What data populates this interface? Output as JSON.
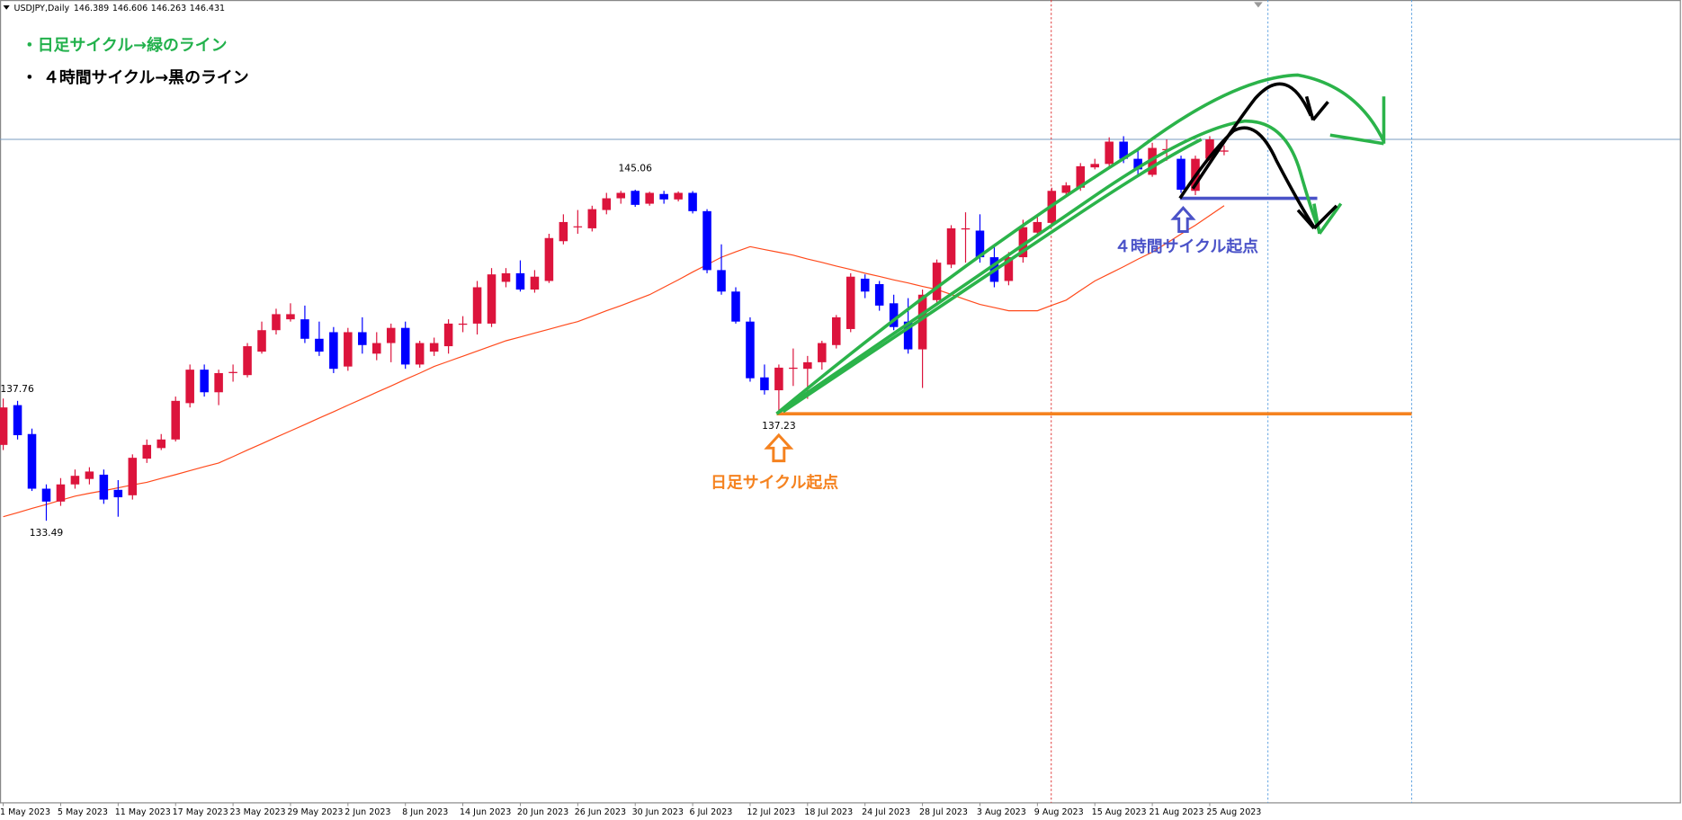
{
  "chart_data": {
    "type": "candlestick",
    "title": "USDJPY,Daily",
    "categories": [
      "1 May 2023",
      null,
      null,
      null,
      "5 May 2023",
      null,
      null,
      null,
      "11 May 2023",
      null,
      null,
      null,
      "17 May 2023",
      null,
      null,
      null,
      "23 May 2023",
      null,
      null,
      null,
      "29 May 2023",
      null,
      null,
      null,
      "2 Jun 2023",
      null,
      null,
      null,
      "8 Jun 2023",
      null,
      null,
      null,
      "14 Jun 2023",
      null,
      null,
      null,
      "20 Jun 2023",
      null,
      null,
      null,
      "26 Jun 2023",
      null,
      null,
      null,
      "30 Jun 2023",
      null,
      null,
      null,
      "6 Jul 2023",
      null,
      null,
      null,
      "12 Jul 2023",
      null,
      null,
      null,
      "18 Jul 2023",
      null,
      null,
      null,
      "24 Jul 2023",
      null,
      null,
      null,
      "28 Jul 2023",
      null,
      null,
      null,
      "3 Aug 2023",
      null,
      null,
      null,
      "9 Aug 2023",
      null,
      null,
      null,
      "15 Aug 2023",
      null,
      null,
      null,
      "21 Aug 2023",
      null,
      null,
      null,
      "25 Aug 2023",
      null
    ],
    "open": [
      136.14,
      137.53,
      136.52,
      134.61,
      134.16,
      134.76,
      134.95,
      135.1,
      134.57,
      134.38,
      135.66,
      136.03,
      136.33,
      137.6,
      138.77,
      137.98,
      138.65,
      138.58,
      139.4,
      140.15,
      140.53,
      140.53,
      139.85,
      140.08,
      138.88,
      140.08,
      139.33,
      139.7,
      140.23,
      138.95,
      139.4,
      139.59,
      140.34,
      140.38,
      140.38,
      141.84,
      142.14,
      141.57,
      141.87,
      143.26,
      143.75,
      143.71,
      144.35,
      144.76,
      145.02,
      144.57,
      144.91,
      144.72,
      144.95,
      144.31,
      142.25,
      141.5,
      140.45,
      138.5,
      138.05,
      138.8,
      138.8,
      139.03,
      139.63,
      140.19,
      141.95,
      141.76,
      141.09,
      140.45,
      139.48,
      141.2,
      142.44,
      143.67,
      143.63,
      142.7,
      141.87,
      142.7,
      143.56,
      143.9,
      144.95,
      145.13,
      145.84,
      145.96,
      146.74,
      146.14,
      145.58,
      146.44,
      146.14,
      145.02,
      146.14,
      146.389
    ],
    "high": [
      137.76,
      137.68,
      136.71,
      134.76,
      134.98,
      135.28,
      135.36,
      135.28,
      134.91,
      135.81,
      136.33,
      136.52,
      137.83,
      138.95,
      138.95,
      138.77,
      138.95,
      139.7,
      140.45,
      140.9,
      141.09,
      141.01,
      140.45,
      140.26,
      140.23,
      140.6,
      140.08,
      140.38,
      140.45,
      139.78,
      139.89,
      140.53,
      140.64,
      141.87,
      142.32,
      142.32,
      142.59,
      142.25,
      143.52,
      144.2,
      144.35,
      144.5,
      144.95,
      145.02,
      145.06,
      144.99,
      145.02,
      145.0,
      145.01,
      144.38,
      143.15,
      141.65,
      140.6,
      138.95,
      138.95,
      139.51,
      139.25,
      139.78,
      140.68,
      142.14,
      142.1,
      141.87,
      141.39,
      141.27,
      141.57,
      142.62,
      143.82,
      144.27,
      144.2,
      143.15,
      142.88,
      144.01,
      144.12,
      145.13,
      145.32,
      145.99,
      146.14,
      146.89,
      146.93,
      146.44,
      146.7,
      146.82,
      146.25,
      146.25,
      146.93,
      146.606
    ],
    "low": [
      135.96,
      136.33,
      134.53,
      133.49,
      134.01,
      134.61,
      134.76,
      134.08,
      133.63,
      134.23,
      135.51,
      135.96,
      136.26,
      137.45,
      137.83,
      137.53,
      138.35,
      138.5,
      139.33,
      140.0,
      140.45,
      139.7,
      139.25,
      138.65,
      138.73,
      139.33,
      139.1,
      139.03,
      138.8,
      138.84,
      139.25,
      139.33,
      140.08,
      140.0,
      140.26,
      141.65,
      141.5,
      141.46,
      141.8,
      143.15,
      143.52,
      143.6,
      144.2,
      144.57,
      144.46,
      144.5,
      144.57,
      144.65,
      144.23,
      142.14,
      141.39,
      140.38,
      138.35,
      137.9,
      137.23,
      138.2,
      137.75,
      138.77,
      139.51,
      140.08,
      141.27,
      140.83,
      140.15,
      139.33,
      138.13,
      141.01,
      142.32,
      142.51,
      142.51,
      141.65,
      141.72,
      142.51,
      143.45,
      143.75,
      144.87,
      145.02,
      145.77,
      145.81,
      145.99,
      145.51,
      145.51,
      146.07,
      144.95,
      144.87,
      146.07,
      146.263
    ],
    "close": [
      137.45,
      136.48,
      134.61,
      134.16,
      134.76,
      135.06,
      135.21,
      134.23,
      134.31,
      135.69,
      136.14,
      136.33,
      137.68,
      138.77,
      137.98,
      138.65,
      138.69,
      139.59,
      140.15,
      140.71,
      140.71,
      139.85,
      139.4,
      138.8,
      140.08,
      139.63,
      139.7,
      140.23,
      138.95,
      139.7,
      139.7,
      140.38,
      140.38,
      141.65,
      142.1,
      142.14,
      141.57,
      142.02,
      143.37,
      143.93,
      143.78,
      144.38,
      144.76,
      144.95,
      144.53,
      144.95,
      144.72,
      144.95,
      144.31,
      142.25,
      141.5,
      140.45,
      138.47,
      138.05,
      138.84,
      138.84,
      139.03,
      139.7,
      140.6,
      142.02,
      141.5,
      141.01,
      140.26,
      139.48,
      141.39,
      142.51,
      143.71,
      143.71,
      142.7,
      141.84,
      142.7,
      143.75,
      143.93,
      145.02,
      145.21,
      145.88,
      145.96,
      146.74,
      146.14,
      145.77,
      146.52,
      146.48,
      145.06,
      146.14,
      146.82,
      146.431
    ],
    "ma_values": [
      133.63,
      133.77,
      133.92,
      134.06,
      134.21,
      134.35,
      134.45,
      134.54,
      134.64,
      134.74,
      134.83,
      134.97,
      135.1,
      135.24,
      135.38,
      135.51,
      135.73,
      135.96,
      136.18,
      136.41,
      136.63,
      136.85,
      137.08,
      137.3,
      137.53,
      137.75,
      137.98,
      138.2,
      138.43,
      138.65,
      138.88,
      139.06,
      139.24,
      139.42,
      139.6,
      139.78,
      139.91,
      140.05,
      140.18,
      140.32,
      140.45,
      140.64,
      140.83,
      141.01,
      141.2,
      141.39,
      141.65,
      141.91,
      142.18,
      142.44,
      142.7,
      142.89,
      143.07,
      142.97,
      142.87,
      142.77,
      142.64,
      142.52,
      142.39,
      142.27,
      142.14,
      142.03,
      141.91,
      141.8,
      141.68,
      141.57,
      141.4,
      141.22,
      141.05,
      140.94,
      140.83,
      140.83,
      140.83,
      141.02,
      141.2,
      141.54,
      141.87,
      142.12,
      142.37,
      142.63,
      142.88,
      143.19,
      143.51,
      143.82,
      144.16,
      144.5
    ],
    "up_color": "#dc143c",
    "down_color": "#0000ff",
    "ma_color": "#ff4a1c",
    "ylim": [
      123.63,
      151.69
    ],
    "grid": false,
    "annotations": {
      "legend_daily": "・日足サイクル→緑のライン",
      "legend_4h": "・ ４時間サイクル→黒のライン",
      "daily_origin": "日足サイクル起点",
      "h4_origin": "４時間サイクル起点"
    }
  }
}
